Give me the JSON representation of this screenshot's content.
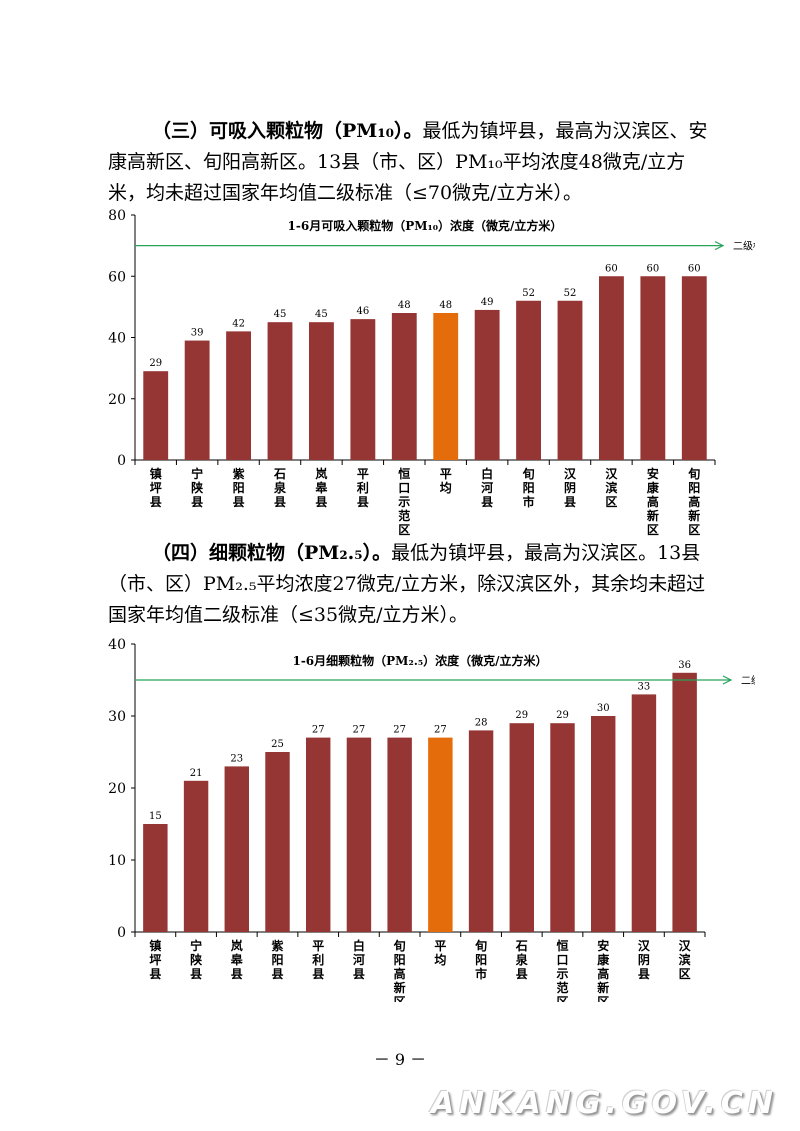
{
  "paragraph1": {
    "heading": "（三）可吸入颗粒物（PM₁₀）。",
    "body": "最低为镇坪县，最高为汉滨区、安康高新区、旬阳高新区。13县（市、区）PM₁₀平均浓度48微克/立方米，均未超过国家年均值二级标准（≤70微克/立方米）。"
  },
  "paragraph2": {
    "heading": "（四）细颗粒物（PM₂.₅）。",
    "body": "最低为镇坪县，最高为汉滨区。13县（市、区）PM₂.₅平均浓度27微克/立方米，除汉滨区外，其余均未超过国家年均值二级标准（≤35微克/立方米）。"
  },
  "page_number": "－ 9 －",
  "watermark": "ANKANG.GOV.CN",
  "colors": {
    "bar": "#963634",
    "highlight": "#E46C0A",
    "standard_line": "#27A35A"
  },
  "chart_data": [
    {
      "type": "bar",
      "title": "1-6月可吸入颗粒物（PM₁₀）浓度（微克/立方米）",
      "categories": [
        "镇坪县",
        "宁陕县",
        "紫阳县",
        "石泉县",
        "岚皋县",
        "平利县",
        "恒口示范区",
        "平均",
        "白河县",
        "旬阳市",
        "汉阴县",
        "汉滨区",
        "安康高新区",
        "旬阳高新区"
      ],
      "values": [
        29,
        39,
        42,
        45,
        45,
        46,
        48,
        48,
        49,
        52,
        52,
        60,
        60,
        60
      ],
      "highlight": "平均",
      "ylim": [
        0,
        80
      ],
      "yticks": [
        0,
        20,
        40,
        60,
        80
      ],
      "reference_line": {
        "value": 70,
        "label": "二级标准"
      },
      "grid": false
    },
    {
      "type": "bar",
      "title": "1-6月细颗粒物（PM₂.₅）浓度（微克/立方米）",
      "categories": [
        "镇坪县",
        "宁陕县",
        "岚皋县",
        "紫阳县",
        "平利县",
        "白河县",
        "旬阳高新区",
        "平均",
        "旬阳市",
        "石泉县",
        "恒口示范区",
        "安康高新区",
        "汉阴县",
        "汉滨区"
      ],
      "values": [
        15,
        21,
        23,
        25,
        27,
        27,
        27,
        27,
        28,
        29,
        29,
        30,
        33,
        36
      ],
      "highlight": "平均",
      "ylim": [
        0,
        40
      ],
      "yticks": [
        0,
        10,
        20,
        30,
        40
      ],
      "reference_line": {
        "value": 35,
        "label": "二级标准"
      },
      "grid": false
    }
  ]
}
